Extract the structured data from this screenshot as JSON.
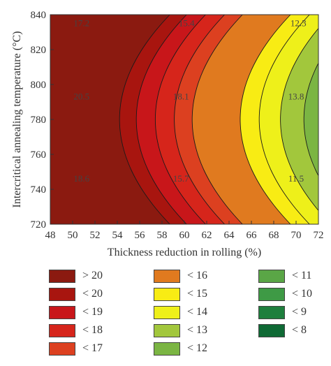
{
  "chart_data": {
    "type": "contour",
    "xlabel": "Thickness reduction in rolling (%)",
    "ylabel": "Intercritical annealing temperature (°C)",
    "xlim": [
      48,
      72
    ],
    "ylim": [
      720,
      840
    ],
    "xticks": [
      "48",
      "50",
      "52",
      "54",
      "56",
      "58",
      "60",
      "62",
      "64",
      "66",
      "68",
      "70",
      "72"
    ],
    "yticks": [
      "720",
      "740",
      "760",
      "780",
      "800",
      "820",
      "840"
    ],
    "levels": [
      8,
      9,
      10,
      11,
      12,
      13,
      14,
      15,
      16,
      17,
      18,
      19,
      20
    ],
    "contour_labels": [
      {
        "text": "17.2",
        "x": 50.8,
        "y": 835
      },
      {
        "text": "15.4",
        "x": 60.2,
        "y": 835
      },
      {
        "text": "12.3",
        "x": 70.2,
        "y": 835
      },
      {
        "text": "20.5",
        "x": 50.8,
        "y": 793
      },
      {
        "text": "18.1",
        "x": 59.7,
        "y": 793
      },
      {
        "text": "13.8",
        "x": 70.0,
        "y": 793
      },
      {
        "text": "18.6",
        "x": 50.8,
        "y": 746
      },
      {
        "text": "15.7",
        "x": 59.7,
        "y": 746
      },
      {
        "text": "11.5",
        "x": 70.0,
        "y": 746
      }
    ],
    "legend": [
      {
        "label": "> 20",
        "color": "#8b1a10"
      },
      {
        "label": "< 20",
        "color": "#a8150f"
      },
      {
        "label": "< 19",
        "color": "#c8161a"
      },
      {
        "label": "< 18",
        "color": "#d6251b"
      },
      {
        "label": "< 17",
        "color": "#dc4020"
      },
      {
        "label": "< 16",
        "color": "#e07a1f"
      },
      {
        "label": "< 15",
        "color": "#f8ec14"
      },
      {
        "label": "< 14",
        "color": "#eef01a"
      },
      {
        "label": "< 13",
        "color": "#a2c73c"
      },
      {
        "label": "< 12",
        "color": "#7bb543"
      },
      {
        "label": "< 11",
        "color": "#5aa646"
      },
      {
        "label": "< 10",
        "color": "#3e9a45"
      },
      {
        "label": "< 9",
        "color": "#1e7f3d"
      },
      {
        "label": "< 8",
        "color": "#0f6a35"
      }
    ]
  }
}
